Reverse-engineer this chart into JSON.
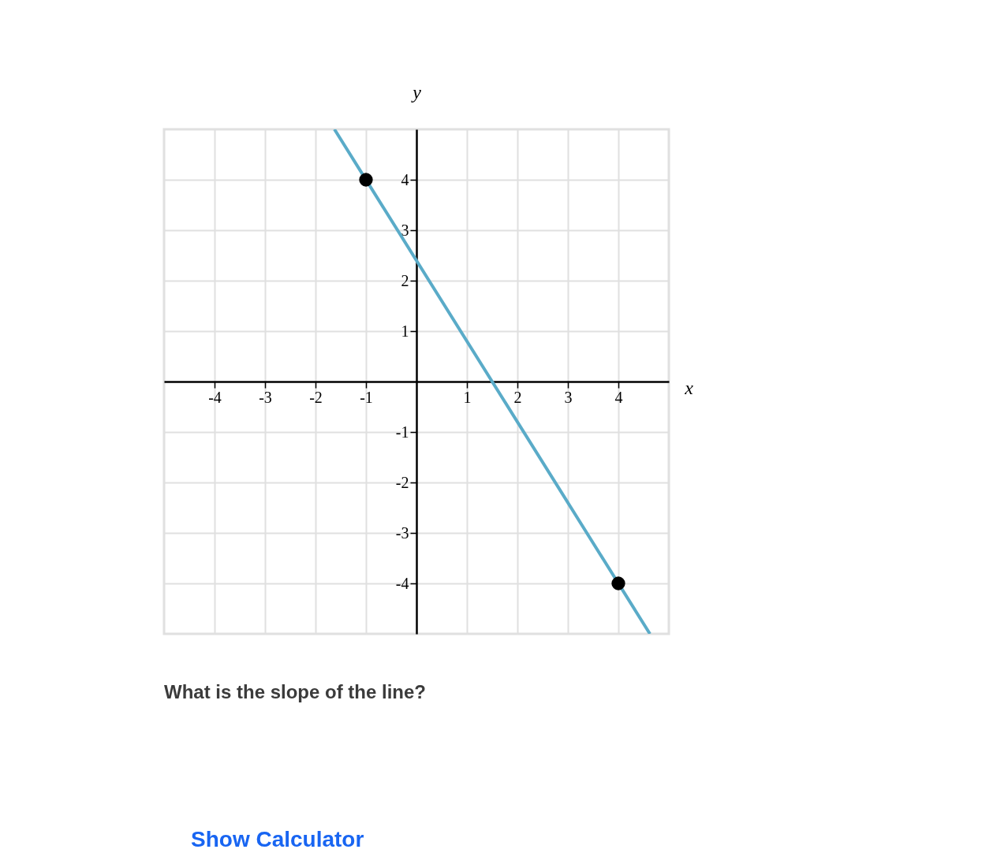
{
  "chart_data": {
    "type": "line",
    "xlabel": "x",
    "ylabel": "y",
    "xlim": [
      -5,
      5
    ],
    "ylim": [
      -5,
      5
    ],
    "xticks": [
      -4,
      -3,
      -2,
      -1,
      1,
      2,
      3,
      4
    ],
    "yticks": [
      -4,
      -3,
      -2,
      -1,
      1,
      2,
      3,
      4
    ],
    "grid": true,
    "series": [
      {
        "color": "#5aabc8",
        "marker": "none",
        "x": [
          -1.625,
          4.625
        ],
        "values": [
          5,
          -5
        ]
      },
      {
        "type": "scatter",
        "color": "#000000",
        "marker": "circle",
        "x": [
          -1,
          4
        ],
        "values": [
          4,
          -4
        ]
      }
    ],
    "annotations": [
      "What is the slope of the line?",
      "Show Calculator"
    ]
  }
}
